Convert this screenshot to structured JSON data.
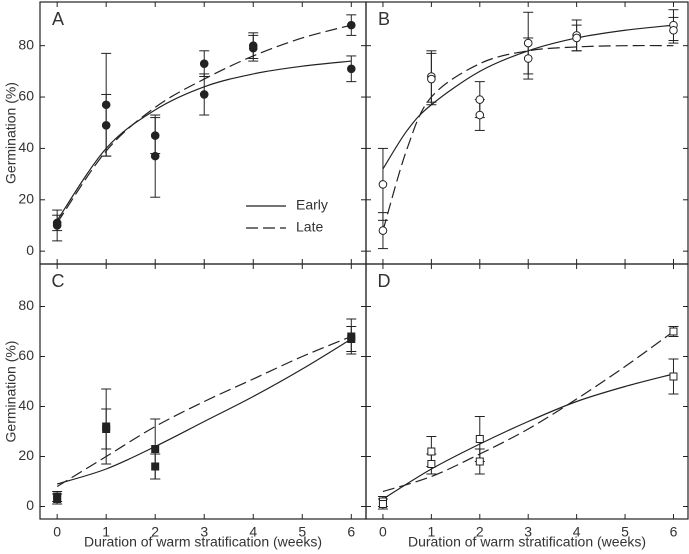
{
  "chart_data": [
    {
      "type": "scatter",
      "label": "A",
      "ylabel": "Germination (%)",
      "marker": "circle",
      "marker_filled": true,
      "xlim": [
        -0.35,
        6.3
      ],
      "ylim": [
        -5,
        97
      ],
      "xticks": [
        0,
        1,
        2,
        3,
        4,
        5,
        6
      ],
      "yticks": [
        0,
        20,
        40,
        60,
        80
      ],
      "show_xticklabels": false,
      "show_yticklabels": true,
      "legend": "lower right",
      "points": {
        "x": [
          0,
          0,
          1,
          1,
          2,
          2,
          3,
          3,
          4,
          4,
          6,
          6
        ],
        "y": [
          11,
          10,
          57,
          49,
          45,
          37,
          73,
          61,
          80,
          79,
          88,
          71
        ],
        "err": [
          3,
          6,
          20,
          12,
          7,
          16,
          5,
          8,
          5,
          5,
          4,
          5
        ]
      },
      "curves": [
        {
          "name": "Early",
          "dash": "solid",
          "x": [
            0,
            1,
            2,
            3,
            4,
            5,
            6
          ],
          "y": [
            12,
            40,
            55,
            64,
            69,
            72,
            74
          ]
        },
        {
          "name": "Late",
          "dash": "dashed",
          "x": [
            0,
            1,
            2,
            3,
            4,
            5,
            6
          ],
          "y": [
            11,
            39,
            56,
            67,
            76,
            83,
            88
          ]
        }
      ]
    },
    {
      "type": "scatter",
      "label": "B",
      "marker": "circle",
      "marker_filled": false,
      "xlim": [
        -0.35,
        6.3
      ],
      "ylim": [
        -5,
        97
      ],
      "xticks": [
        0,
        1,
        2,
        3,
        4,
        5,
        6
      ],
      "yticks": [
        0,
        20,
        40,
        60,
        80
      ],
      "show_xticklabels": false,
      "show_yticklabels": false,
      "points": {
        "x": [
          0,
          0,
          1,
          1,
          2,
          2,
          3,
          3,
          4,
          4,
          6,
          6
        ],
        "y": [
          26,
          8,
          68,
          67,
          59,
          53,
          81,
          75,
          84,
          83,
          88,
          86
        ],
        "err": [
          14,
          7,
          10,
          10,
          7,
          6,
          12,
          8,
          6,
          5,
          6,
          5
        ]
      },
      "curves": [
        {
          "name": "Early",
          "dash": "solid",
          "x": [
            0,
            0.5,
            1,
            2,
            3,
            4,
            5,
            6
          ],
          "y": [
            32,
            47,
            57,
            70,
            78,
            83,
            86,
            88
          ]
        },
        {
          "name": "Late",
          "dash": "dashed",
          "x": [
            0,
            0.5,
            1,
            2,
            3,
            4,
            5,
            6
          ],
          "y": [
            8,
            40,
            60,
            73,
            78,
            79.5,
            80,
            80
          ]
        }
      ]
    },
    {
      "type": "scatter",
      "label": "C",
      "ylabel": "Germination (%)",
      "xlabel": "Duration of warm stratification (weeks)",
      "marker": "square",
      "marker_filled": true,
      "xlim": [
        -0.35,
        6.3
      ],
      "ylim": [
        -5,
        97
      ],
      "xticks": [
        0,
        1,
        2,
        3,
        4,
        5,
        6
      ],
      "yticks": [
        0,
        20,
        40,
        60,
        80
      ],
      "show_xticklabels": true,
      "show_yticklabels": true,
      "points": {
        "x": [
          0,
          0,
          1,
          1,
          2,
          2,
          6,
          6
        ],
        "y": [
          3,
          4,
          32,
          31,
          23,
          16,
          68,
          67
        ],
        "err": [
          2,
          2,
          15,
          8,
          12,
          5,
          7,
          5
        ]
      },
      "curves": [
        {
          "name": "Early",
          "dash": "solid",
          "x": [
            0,
            1,
            2,
            3,
            4,
            5,
            6
          ],
          "y": [
            9,
            15,
            24,
            34,
            44,
            55,
            67
          ]
        },
        {
          "name": "Late",
          "dash": "dashed",
          "x": [
            0,
            1,
            2,
            3,
            4,
            5,
            6
          ],
          "y": [
            8,
            20,
            32,
            42,
            51,
            60,
            68
          ]
        }
      ]
    },
    {
      "type": "scatter",
      "label": "D",
      "xlabel": "Duration of warm stratification (weeks)",
      "marker": "square",
      "marker_filled": false,
      "xlim": [
        -0.35,
        6.3
      ],
      "ylim": [
        -5,
        97
      ],
      "xticks": [
        0,
        1,
        2,
        3,
        4,
        5,
        6
      ],
      "yticks": [
        0,
        20,
        40,
        60,
        80
      ],
      "show_xticklabels": true,
      "show_yticklabels": false,
      "points": {
        "x": [
          0,
          0,
          1,
          1,
          2,
          2,
          6,
          6
        ],
        "y": [
          2,
          1,
          22,
          17,
          27,
          18,
          70,
          52
        ],
        "err": [
          2,
          2,
          6,
          4,
          9,
          5,
          2,
          7
        ]
      },
      "curves": [
        {
          "name": "Early",
          "dash": "solid",
          "x": [
            0,
            1,
            2,
            3,
            4,
            5,
            6
          ],
          "y": [
            3,
            15,
            25,
            34,
            42,
            48,
            53
          ]
        },
        {
          "name": "Late",
          "dash": "dashed",
          "x": [
            0,
            1,
            2,
            3,
            4,
            5,
            6
          ],
          "y": [
            6,
            12,
            21,
            31,
            43,
            56,
            70
          ]
        }
      ]
    }
  ]
}
